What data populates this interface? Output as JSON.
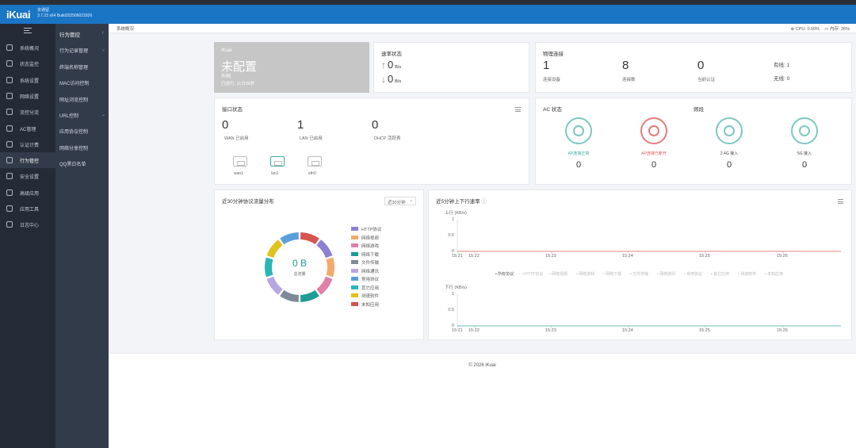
{
  "header": {
    "brand": "iKuai",
    "device_name": "京通留",
    "version": "3.7.23 x64 Build202506021826"
  },
  "sidebar": {
    "items": [
      {
        "label": "系统概况",
        "icon": "dashboard-icon"
      },
      {
        "label": "状态监控",
        "icon": "monitor-icon"
      },
      {
        "label": "系统设置",
        "icon": "gear-icon"
      },
      {
        "label": "网络设置",
        "icon": "network-icon"
      },
      {
        "label": "流控分流",
        "icon": "flow-icon"
      },
      {
        "label": "AC管理",
        "icon": "ac-icon"
      },
      {
        "label": "认证计费",
        "icon": "auth-icon"
      },
      {
        "label": "行为管控",
        "icon": "behavior-icon"
      },
      {
        "label": "安全设置",
        "icon": "shield-icon"
      },
      {
        "label": "高级应用",
        "icon": "advanced-icon"
      },
      {
        "label": "应用工具",
        "icon": "tools-icon"
      },
      {
        "label": "日志中心",
        "icon": "log-icon"
      }
    ]
  },
  "subsidebar": {
    "title": "行为管控",
    "items": [
      "行为记录管理",
      "终端名称管理",
      "MAC访问控制",
      "网址浏览控制",
      "URL控制",
      "应用协议控制",
      "网络分享控制",
      "QQ黑白名单"
    ]
  },
  "breadcrumb": "系统概况",
  "sysinfo": {
    "cpu": "CPU: 0.00%",
    "mem": "内存: 26%"
  },
  "device_card": {
    "label": "iKuai",
    "status": "未配置",
    "sub": "外网",
    "uptime": "已运行: 11分36秒"
  },
  "rate_card": {
    "title": "速率状态",
    "up_value": "0",
    "up_unit": "B/s",
    "down_value": "0",
    "down_unit": "B/s"
  },
  "phys_card": {
    "title": "物理连接",
    "stats": [
      {
        "value": "1",
        "label": "连接设备"
      },
      {
        "value": "8",
        "label": "连接数"
      },
      {
        "value": "0",
        "label": "当前认证"
      }
    ],
    "wired": "有线: 1",
    "wireless": "无线: 0"
  },
  "iface_card": {
    "title": "接口状态",
    "stats": [
      {
        "value": "0",
        "label": "WAN 已启用"
      },
      {
        "value": "1",
        "label": "LAN 已启用"
      },
      {
        "value": "0",
        "label": "DHCP 活跃表"
      }
    ],
    "ports": [
      "wan1",
      "lan1",
      "eth0"
    ]
  },
  "ac_card": {
    "title": "AC 状态",
    "subtitle": "频段",
    "items": [
      {
        "label": "AP连接正常",
        "value": "0",
        "color": "#3aa7a0"
      },
      {
        "label": "AP连接已断开",
        "value": "0",
        "color": "#e05a5a"
      },
      {
        "label": "2.4G 接入",
        "value": "0",
        "color": "#444444"
      },
      {
        "label": "5G 接入",
        "value": "0",
        "color": "#444444"
      }
    ]
  },
  "traffic_card": {
    "title": "近30分钟协议流量分布",
    "select": "近30分钟",
    "center_value": "0 B",
    "center_label": "总流量",
    "legend": [
      {
        "label": "HTTP协议",
        "color": "#8d7fd1"
      },
      {
        "label": "网络视频",
        "color": "#f3a96b"
      },
      {
        "label": "网络游戏",
        "color": "#e07fa8"
      },
      {
        "label": "网络下载",
        "color": "#1f9c95"
      },
      {
        "label": "文件传输",
        "color": "#7f8a99"
      },
      {
        "label": "网络通讯",
        "color": "#b7a6e3"
      },
      {
        "label": "常用协议",
        "color": "#5b9fd8"
      },
      {
        "label": "其它应用",
        "color": "#2bb5b7"
      },
      {
        "label": "测速软件",
        "color": "#e0c21c"
      },
      {
        "label": "未知应用",
        "color": "#d9534f"
      }
    ]
  },
  "rate_chart": {
    "title": "近5分钟上下行速率",
    "up_label": "上行",
    "up_unit": "(KB/s)",
    "down_label": "下行",
    "down_unit": "(KB/s)",
    "y_ticks": [
      "1",
      "0.5",
      "0"
    ],
    "x_ticks": [
      "15:21",
      "15:22",
      "15:23",
      "15:24",
      "15:25",
      "15:26"
    ],
    "protocols": [
      "所有协议",
      "HTTP协议",
      "网络视频",
      "网络游戏",
      "网络下载",
      "文件传输",
      "网络通讯",
      "常用协议",
      "其它应用",
      "测速软件",
      "未知应用"
    ],
    "up_color": "#e05a5a",
    "down_color": "#3aa7a0"
  },
  "footer": {
    "copyright": "© 2026 iKuai"
  },
  "chart_data": [
    {
      "type": "line",
      "title": "近5分钟上下行速率",
      "ylabel": "上行 (KB/s)",
      "x": [
        "15:21",
        "15:22",
        "15:23",
        "15:24",
        "15:25",
        "15:26"
      ],
      "series": [
        {
          "name": "上行",
          "values": [
            0,
            0,
            0,
            0,
            0,
            0
          ]
        }
      ],
      "ylim": [
        0,
        1
      ]
    },
    {
      "type": "line",
      "ylabel": "下行 (KB/s)",
      "x": [
        "15:21",
        "15:22",
        "15:23",
        "15:24",
        "15:25",
        "15:26"
      ],
      "series": [
        {
          "name": "下行",
          "values": [
            0,
            0,
            0,
            0,
            0,
            0
          ]
        }
      ],
      "ylim": [
        0,
        1
      ]
    }
  ]
}
